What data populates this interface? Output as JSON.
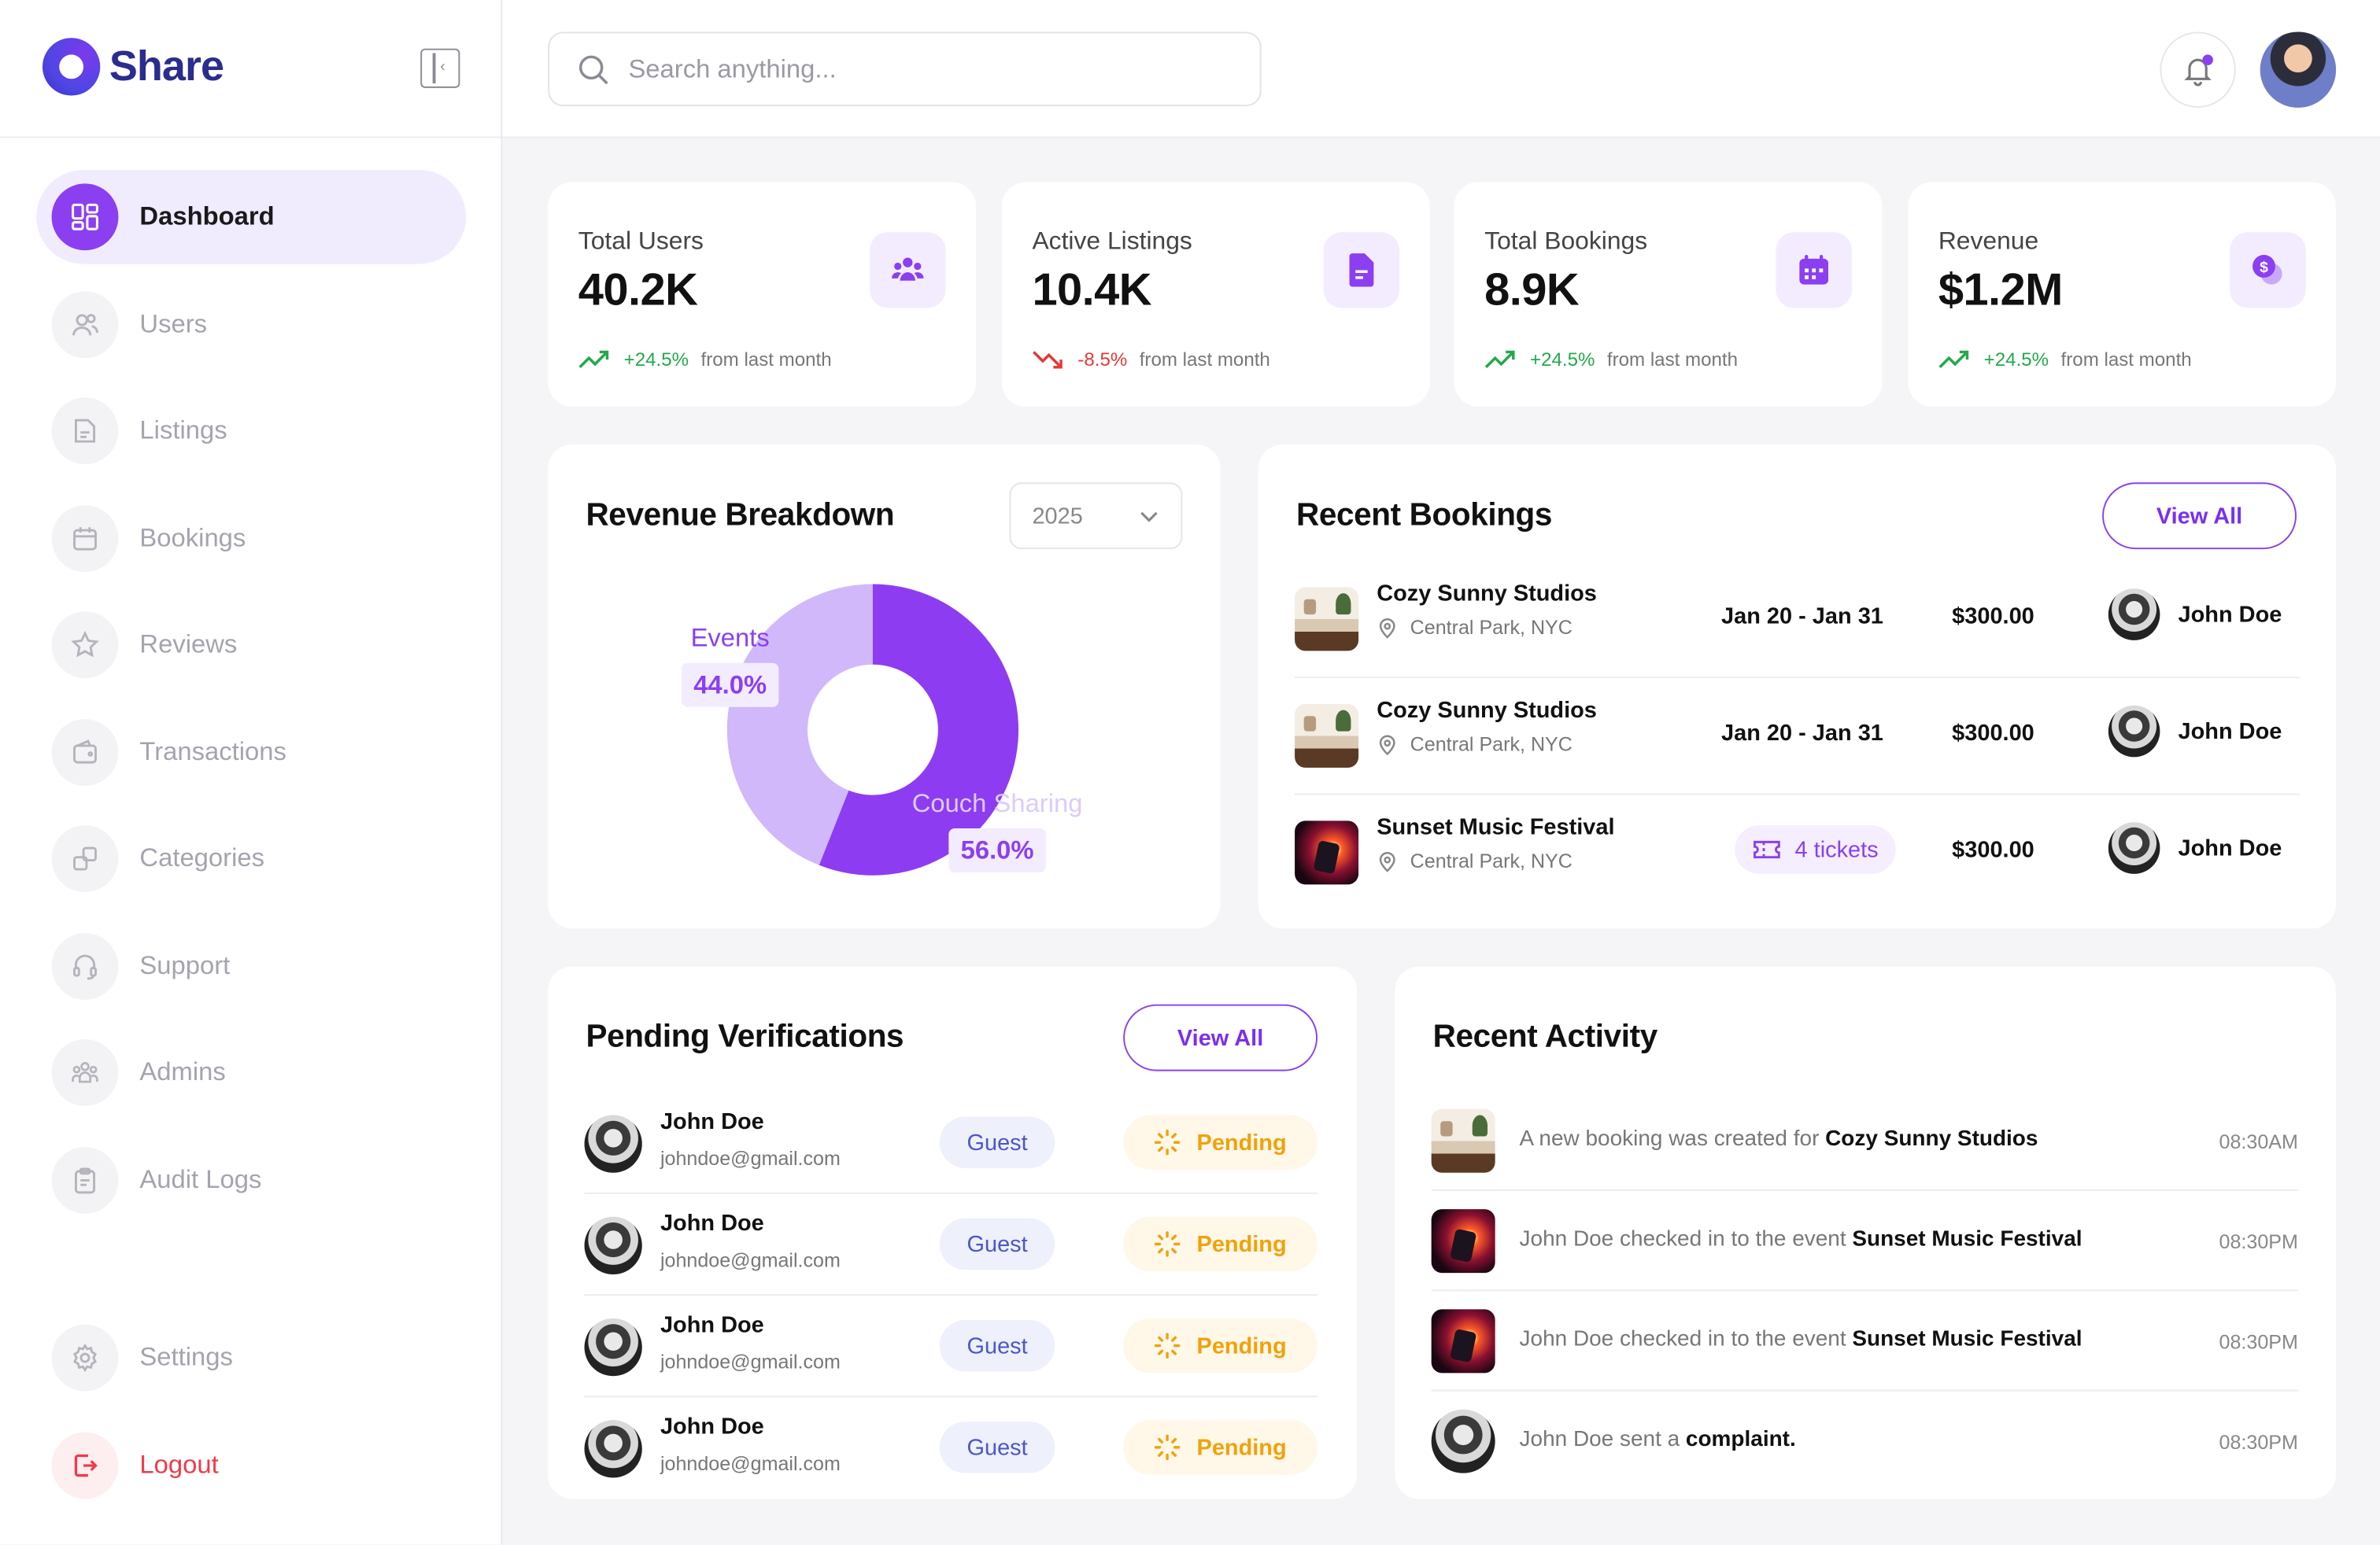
{
  "brand": {
    "name": "Share"
  },
  "search": {
    "placeholder": "Search anything..."
  },
  "sidebar": {
    "items": [
      {
        "label": "Dashboard"
      },
      {
        "label": "Users"
      },
      {
        "label": "Listings"
      },
      {
        "label": "Bookings"
      },
      {
        "label": "Reviews"
      },
      {
        "label": "Transactions"
      },
      {
        "label": "Categories"
      },
      {
        "label": "Support"
      },
      {
        "label": "Admins"
      },
      {
        "label": "Audit Logs"
      }
    ],
    "settings": "Settings",
    "logout": "Logout"
  },
  "stats": [
    {
      "label": "Total Users",
      "value": "40.2K",
      "trend": "+24.5%",
      "note": "from last month",
      "direction": "up",
      "icon": "users-icon"
    },
    {
      "label": "Active Listings",
      "value": "10.4K",
      "trend": "-8.5%",
      "note": "from last month",
      "direction": "down",
      "icon": "document-icon"
    },
    {
      "label": "Total Bookings",
      "value": "8.9K",
      "trend": "+24.5%",
      "note": "from last month",
      "direction": "up",
      "icon": "calendar-icon"
    },
    {
      "label": "Revenue",
      "value": "$1.2M",
      "trend": "+24.5%",
      "note": "from last month",
      "direction": "up",
      "icon": "coins-icon"
    }
  ],
  "revenue_breakdown": {
    "title": "Revenue Breakdown",
    "year": "2025",
    "colors": {
      "events": "#d0b8fb",
      "couch_sharing": "#8e3cf2"
    }
  },
  "chart_data": {
    "type": "pie",
    "donut": true,
    "categories": [
      "Events",
      "Couch Sharing"
    ],
    "values": [
      44.0,
      56.0
    ],
    "value_labels": [
      "44.0%",
      "56.0%"
    ]
  },
  "recent_bookings": {
    "title": "Recent Bookings",
    "view_all": "View All",
    "rows": [
      {
        "name": "Cozy Sunny Studios",
        "location": "Central Park, NYC",
        "dates": "Jan 20 - Jan 31",
        "price": "$300.00",
        "user": "John Doe"
      },
      {
        "name": "Cozy Sunny Studios",
        "location": "Central Park, NYC",
        "dates": "Jan 20 - Jan 31",
        "price": "$300.00",
        "user": "John Doe"
      },
      {
        "name": "Sunset Music Festival",
        "location": "Central Park, NYC",
        "tickets": "4 tickets",
        "price": "$300.00",
        "user": "John Doe"
      }
    ]
  },
  "pending_verifications": {
    "title": "Pending Verifications",
    "view_all": "View All",
    "rows": [
      {
        "name": "John Doe",
        "email": "johndoe@gmail.com",
        "role": "Guest",
        "status": "Pending"
      },
      {
        "name": "John Doe",
        "email": "johndoe@gmail.com",
        "role": "Guest",
        "status": "Pending"
      },
      {
        "name": "John Doe",
        "email": "johndoe@gmail.com",
        "role": "Guest",
        "status": "Pending"
      },
      {
        "name": "John Doe",
        "email": "johndoe@gmail.com",
        "role": "Guest",
        "status": "Pending"
      }
    ]
  },
  "recent_activity": {
    "title": "Recent Activity",
    "rows": [
      {
        "text": "A new booking was created for",
        "highlight": "Cozy Sunny Studios",
        "time": "08:30AM"
      },
      {
        "text": "John Doe checked in to the event",
        "highlight": "Sunset Music Festival",
        "time": "08:30PM"
      },
      {
        "text": "John Doe checked in to the event",
        "highlight": "Sunset Music Festival",
        "time": "08:30PM"
      },
      {
        "text": "John Doe sent a",
        "highlight": "complaint.",
        "time": "08:30PM"
      }
    ]
  }
}
